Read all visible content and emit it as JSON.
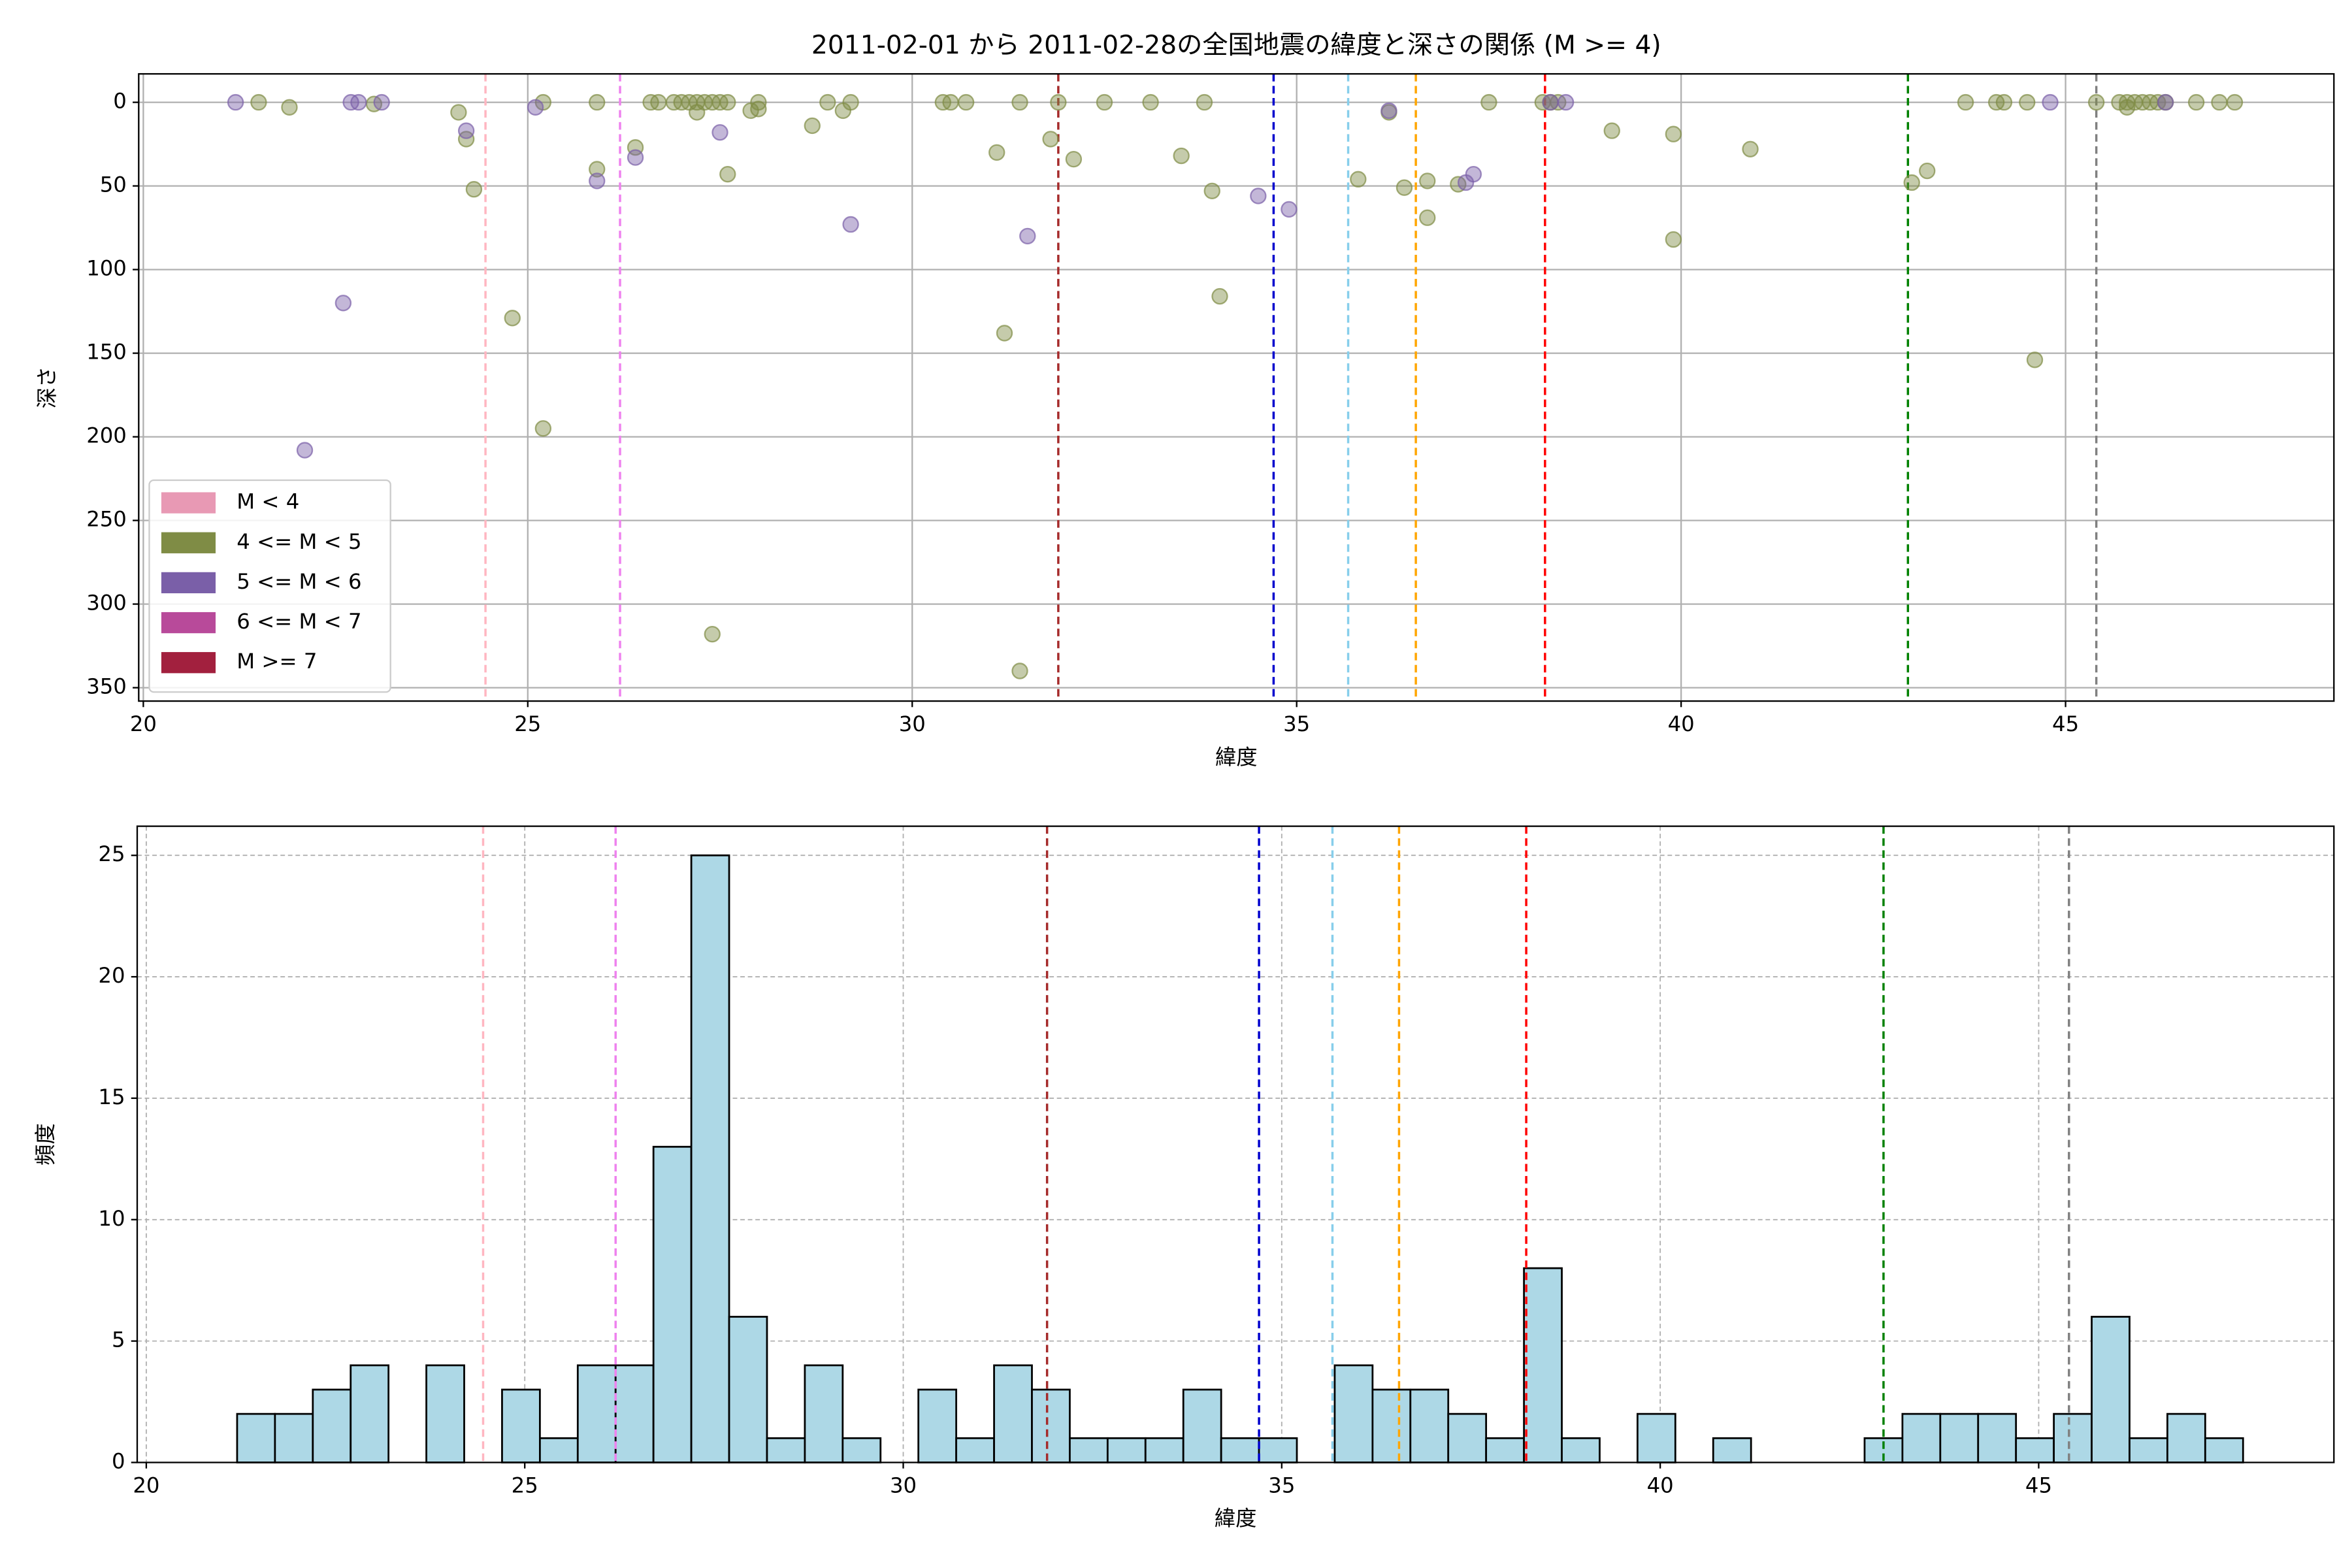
{
  "chart_data": [
    {
      "type": "scatter",
      "title": "2011-02-01 から 2011-02-28の全国地震の緯度と深さの関係 (M >= 4)",
      "x_label": "緯度",
      "y_label": "深さ",
      "xlim": [
        19.94,
        48.49
      ],
      "ylim": [
        358,
        -17
      ],
      "xticks": [
        20,
        25,
        30,
        35,
        40,
        45
      ],
      "yticks": [
        0,
        50,
        100,
        150,
        200,
        250,
        300,
        350
      ],
      "grid": true,
      "legend": "lower left",
      "vlines": [
        {
          "x": 24.45,
          "color": "#ffb6c1"
        },
        {
          "x": 26.2,
          "color": "#ee82ee"
        },
        {
          "x": 31.9,
          "color": "#a52a2a"
        },
        {
          "x": 34.7,
          "color": "#0000cd"
        },
        {
          "x": 35.67,
          "color": "#87ceeb"
        },
        {
          "x": 36.55,
          "color": "#ffa500"
        },
        {
          "x": 38.23,
          "color": "#ff0000"
        },
        {
          "x": 42.95,
          "color": "#008000"
        },
        {
          "x": 45.4,
          "color": "#808080"
        }
      ],
      "series": [
        {
          "name": "M < 4",
          "color": "#e899b4",
          "x": [],
          "y": []
        },
        {
          "name": "4 <= M < 5",
          "color": "#7f8c45",
          "x": [
            21.5,
            21.9,
            23.0,
            24.1,
            24.2,
            24.3,
            24.8,
            25.2,
            25.2,
            25.9,
            25.9,
            26.4,
            26.6,
            26.7,
            26.9,
            27.0,
            27.1,
            27.2,
            27.3,
            27.4,
            27.5,
            27.6,
            27.2,
            27.4,
            27.6,
            27.9,
            28.0,
            28.0,
            28.7,
            28.9,
            29.1,
            29.2,
            30.4,
            30.5,
            30.7,
            31.1,
            31.2,
            31.4,
            31.4,
            31.8,
            31.9,
            32.1,
            32.5,
            33.1,
            33.5,
            33.8,
            33.9,
            34.0,
            35.8,
            36.2,
            36.4,
            36.7,
            36.7,
            37.1,
            37.5,
            38.2,
            38.3,
            38.4,
            39.1,
            39.9,
            39.9,
            40.9,
            43.0,
            43.2,
            43.7,
            44.1,
            44.2,
            44.5,
            44.6,
            45.4,
            45.7,
            45.8,
            45.9,
            46.0,
            46.1,
            46.2,
            46.3,
            45.8,
            46.7,
            47.0,
            47.2
          ],
          "y": [
            0,
            3,
            1,
            6,
            22,
            52,
            129,
            195,
            0,
            0,
            40,
            27,
            0,
            0,
            0,
            0,
            0,
            0,
            0,
            0,
            0,
            0,
            6,
            318,
            43,
            5,
            0,
            4,
            14,
            0,
            5,
            0,
            0,
            0,
            0,
            30,
            138,
            340,
            0,
            22,
            0,
            34,
            0,
            0,
            32,
            0,
            53,
            116,
            46,
            6,
            51,
            47,
            69,
            49,
            0,
            0,
            0,
            0,
            17,
            82,
            19,
            28,
            48,
            41,
            0,
            0,
            0,
            0,
            154,
            0,
            0,
            0,
            0,
            0,
            0,
            0,
            0,
            3,
            0,
            0,
            0
          ]
        },
        {
          "name": "5 <= M < 6",
          "color": "#7a5fa8",
          "x": [
            21.2,
            22.1,
            22.6,
            22.7,
            22.8,
            23.1,
            24.2,
            25.1,
            25.9,
            26.4,
            27.5,
            29.2,
            31.5,
            34.5,
            34.9,
            36.2,
            37.2,
            37.3,
            38.3,
            38.5,
            44.8,
            46.3
          ],
          "y": [
            0,
            208,
            120,
            0,
            0,
            0,
            17,
            3,
            47,
            33,
            18,
            73,
            80,
            56,
            64,
            5,
            48,
            43,
            0,
            0,
            0,
            0
          ]
        },
        {
          "name": "6 <= M < 7",
          "color": "#b84a9a",
          "x": [],
          "y": []
        },
        {
          "name": "M >= 7",
          "color": "#a2203e",
          "x": [],
          "y": []
        }
      ]
    },
    {
      "type": "histogram",
      "x_label": "緯度",
      "y_label": "頻度",
      "xlim": [
        19.88,
        48.9
      ],
      "ylim": [
        0,
        26.2
      ],
      "xticks": [
        20,
        25,
        30,
        35,
        40,
        45
      ],
      "yticks": [
        0,
        5,
        10,
        15,
        20,
        25
      ],
      "grid": true,
      "color": "#add8e6",
      "edgecolor": "#000000",
      "vlines": [
        {
          "x": 24.45,
          "color": "#ffb6c1"
        },
        {
          "x": 26.2,
          "color": "#ee82ee"
        },
        {
          "x": 31.9,
          "color": "#a52a2a"
        },
        {
          "x": 34.7,
          "color": "#0000cd"
        },
        {
          "x": 35.67,
          "color": "#87ceeb"
        },
        {
          "x": 36.55,
          "color": "#ffa500"
        },
        {
          "x": 38.23,
          "color": "#ff0000"
        },
        {
          "x": 42.95,
          "color": "#008000"
        },
        {
          "x": 45.4,
          "color": "#808080"
        }
      ],
      "bins": [
        21.2,
        21.7,
        22.2,
        22.7,
        23.2,
        23.7,
        24.2,
        24.7,
        25.2,
        25.7,
        26.2,
        26.7,
        27.2,
        27.7,
        28.2,
        28.7,
        29.2,
        29.7,
        30.2,
        30.7,
        31.2,
        31.7,
        32.2,
        32.7,
        33.2,
        33.7,
        34.2,
        34.7,
        35.2,
        35.7,
        36.2,
        36.7,
        37.2,
        37.7,
        38.2,
        38.7,
        39.2,
        39.7,
        40.2,
        40.7,
        41.2,
        41.7,
        42.2,
        42.7,
        43.2,
        43.7,
        44.2,
        44.7,
        45.2,
        45.7,
        46.2,
        46.7,
        47.2,
        47.7
      ],
      "values": [
        2,
        2,
        3,
        4,
        0,
        4,
        0,
        3,
        1,
        4,
        4,
        13,
        25,
        6,
        1,
        4,
        1,
        0,
        3,
        1,
        4,
        3,
        1,
        1,
        1,
        3,
        1,
        1,
        0,
        4,
        3,
        3,
        2,
        1,
        8,
        1,
        0,
        2,
        0,
        1,
        0,
        0,
        0,
        1,
        2,
        2,
        2,
        1,
        2,
        6,
        1,
        2,
        1
      ]
    }
  ]
}
